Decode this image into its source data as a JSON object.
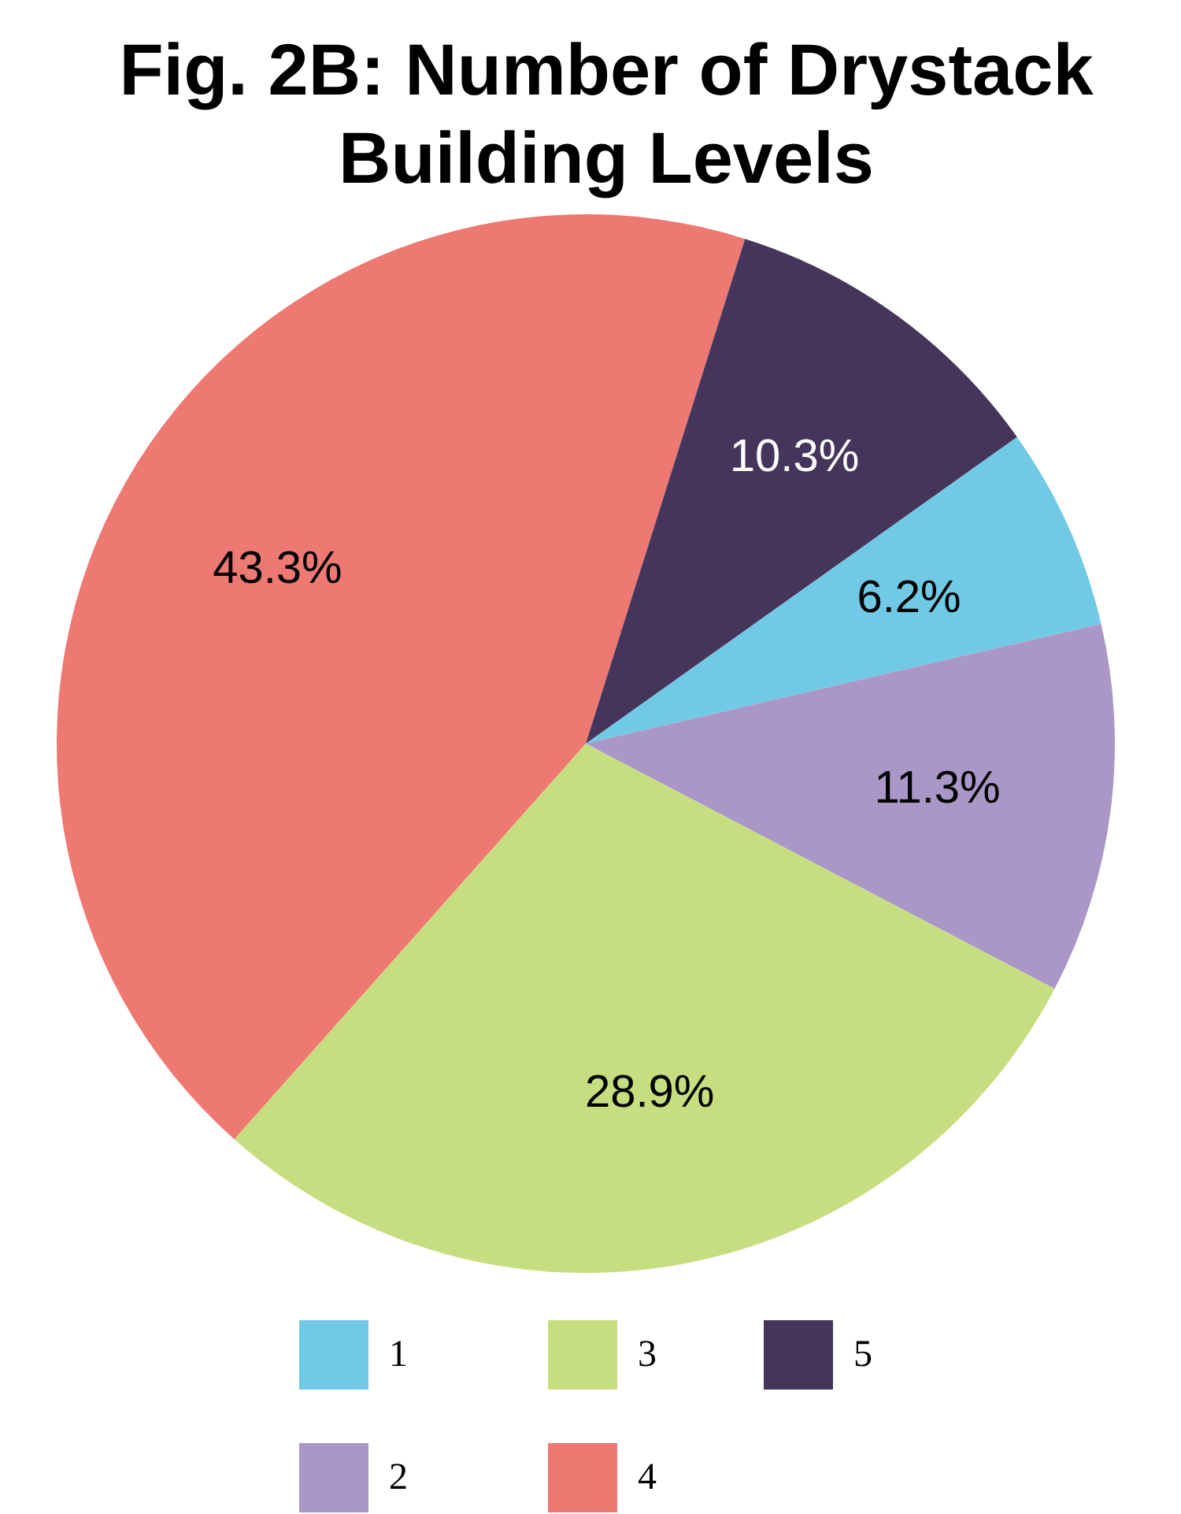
{
  "chart_data": {
    "type": "pie",
    "title": "Fig. 2B: Number of Drystack Building Levels",
    "categories": [
      "1",
      "2",
      "3",
      "4",
      "5"
    ],
    "values": [
      6.2,
      11.3,
      28.9,
      43.3,
      10.3
    ],
    "value_labels": [
      "6.2%",
      "11.3%",
      "28.9%",
      "43.3%",
      "10.3%"
    ],
    "colors": [
      "#70cae5",
      "#aa96c7",
      "#c7de80",
      "#ee7872",
      "#45355a"
    ],
    "legend": "bottom"
  }
}
